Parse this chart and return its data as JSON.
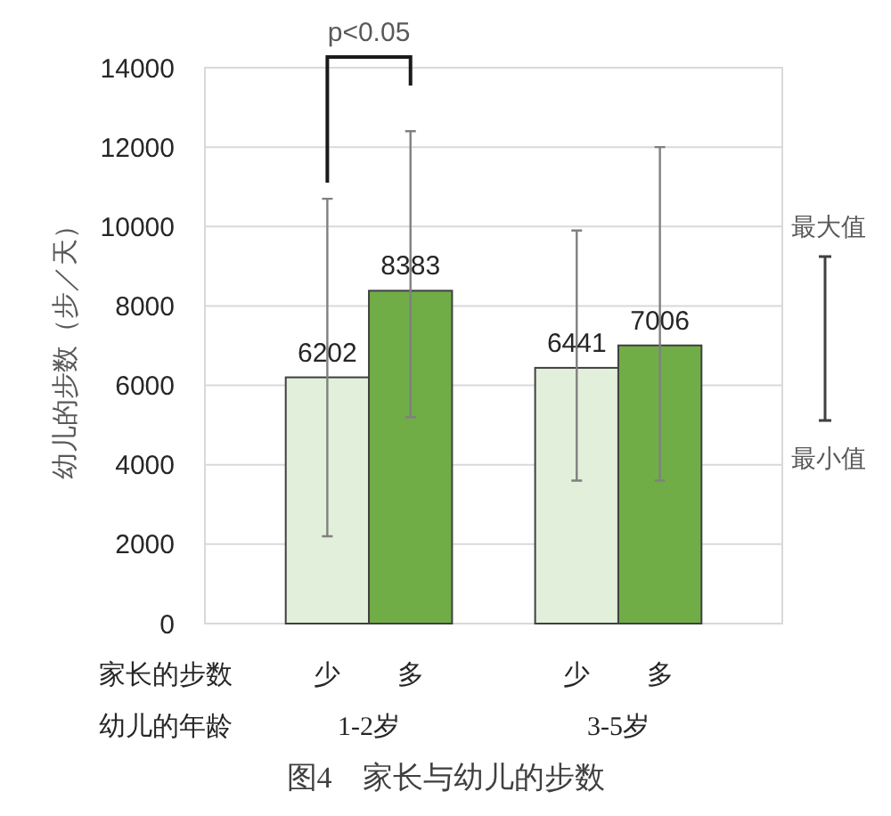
{
  "chart_data": {
    "type": "bar",
    "title": "图4　家长与幼儿的步数",
    "xlabel": "幼儿的年龄",
    "ylabel": "幼儿的步数（步／天）",
    "legend_title": "家长的步数",
    "categories": [
      "1-2岁",
      "3-5岁"
    ],
    "series": [
      {
        "name": "少",
        "color": "#e2efda",
        "values": [
          6202,
          6441
        ],
        "errors": [
          [
            2200,
            10700
          ],
          [
            3600,
            9900
          ]
        ]
      },
      {
        "name": "多",
        "color": "#70ad47",
        "values": [
          8383,
          7006
        ],
        "errors": [
          [
            5200,
            12400
          ],
          [
            3600,
            12000
          ]
        ]
      }
    ],
    "ylim": [
      0,
      14000
    ],
    "yticks": [
      0,
      2000,
      4000,
      6000,
      8000,
      10000,
      12000,
      14000
    ],
    "grid": "y",
    "legend": "bottom",
    "data_labels": true,
    "annotations": [
      "p<0.05",
      "最大值",
      "最小值"
    ]
  }
}
